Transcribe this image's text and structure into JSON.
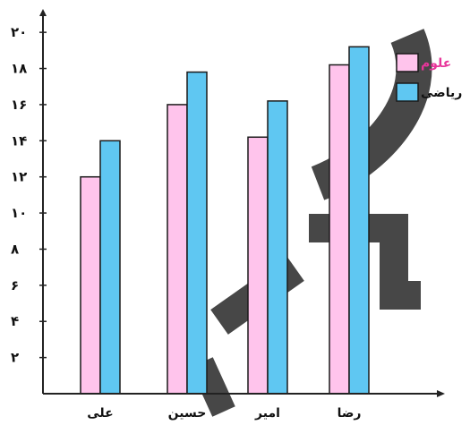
{
  "chart_data": {
    "type": "bar",
    "categories": [
      "علی",
      "حسین",
      "امیر",
      "رضا"
    ],
    "y_ticks": [
      "۲",
      "۴",
      "۶",
      "۸",
      "۱۰",
      "۱۲",
      "۱۴",
      "۱۶",
      "۱۸",
      "۲۰"
    ],
    "tick_values": [
      2,
      4,
      6,
      8,
      10,
      12,
      14,
      16,
      18,
      20
    ],
    "ylim": [
      0,
      20.8
    ],
    "grid": false,
    "legend_position": "top-right",
    "series": [
      {
        "name": "علوم",
        "values": [
          12,
          16,
          14.2,
          18.2
        ],
        "color": "#ffc4ec",
        "label_color": "#e8359a"
      },
      {
        "name": "ریاضی",
        "values": [
          14,
          17.8,
          16.2,
          19.2
        ],
        "color": "#5fc7f2",
        "label_color": "#111111"
      }
    ],
    "watermark_color": "#333333"
  }
}
